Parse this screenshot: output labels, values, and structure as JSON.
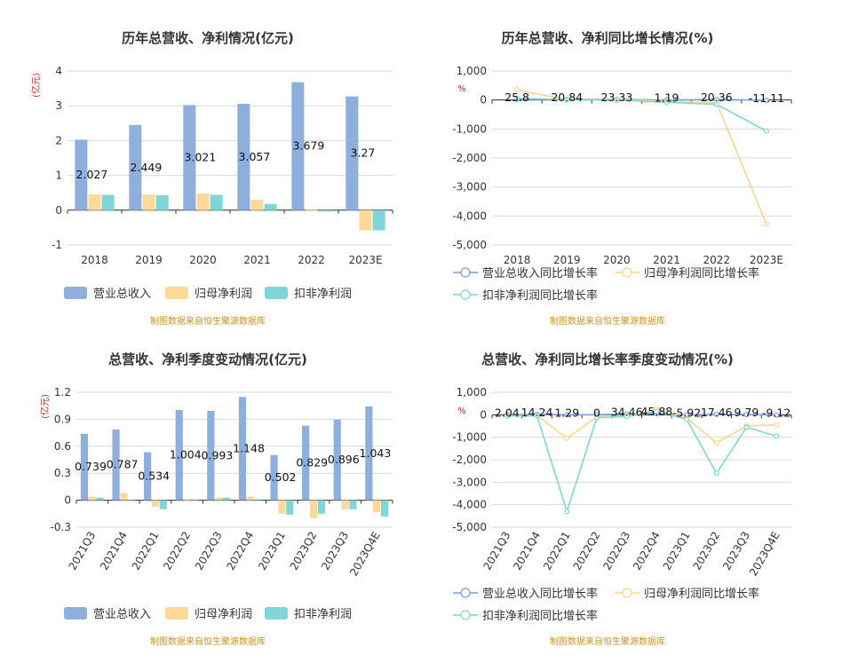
{
  "source_note": "制图数据来自恒生聚源数据库",
  "chart_data": [
    {
      "type": "bar",
      "title": "历年总营收、净利情况(亿元)",
      "ylabel": "(亿元)",
      "ylim": [
        -1,
        4
      ],
      "yticks": [
        "-1",
        "0",
        "1",
        "2",
        "3",
        "4"
      ],
      "categories": [
        "2018",
        "2019",
        "2020",
        "2021",
        "2022",
        "2023E"
      ],
      "series": [
        {
          "name": "营业总收入",
          "color": "#8eaedc",
          "values": [
            2.027,
            2.449,
            3.021,
            3.057,
            3.679,
            3.27
          ]
        },
        {
          "name": "归母净利润",
          "color": "#fdd999",
          "values": [
            0.45,
            0.45,
            0.48,
            0.3,
            0.01,
            -0.58
          ]
        },
        {
          "name": "扣非净利润",
          "color": "#7fd6d6",
          "values": [
            0.44,
            0.43,
            0.44,
            0.18,
            -0.04,
            -0.58
          ]
        }
      ],
      "data_labels": [
        "2.027",
        "2.449",
        "3.021",
        "3.057",
        "3.679",
        "3.27"
      ],
      "legend": "bottom"
    },
    {
      "type": "line",
      "title": "历年总营收、净利同比增长情况(%)",
      "ylabel": "%",
      "ylim": [
        -5000,
        1000
      ],
      "yticks": [
        "-5,000",
        "-4,000",
        "-3,000",
        "-2,000",
        "-1,000",
        "0",
        "1,000"
      ],
      "categories": [
        "2018",
        "2019",
        "2020",
        "2021",
        "2022",
        "2023E"
      ],
      "series": [
        {
          "name": "营业总收入同比增长率",
          "color": "#7d9fd6",
          "values": [
            25.8,
            20.84,
            23.33,
            1.19,
            20.36,
            -11.11
          ]
        },
        {
          "name": "归母净利润同比增长率",
          "color": "#fdd58e",
          "values": [
            350,
            5,
            10,
            -40,
            -100,
            -4280
          ]
        },
        {
          "name": "扣非净利润同比增长率",
          "color": "#7fd6d6",
          "values": [
            60,
            5,
            -5,
            -80,
            -150,
            -1070
          ]
        }
      ],
      "data_labels": [
        "25.8",
        "20.84",
        "23.33",
        "1.19",
        "20.36",
        "-11.11"
      ],
      "legend": "bottom"
    },
    {
      "type": "bar",
      "title": "总营收、净利季度变动情况(亿元)",
      "ylabel": "(亿元)",
      "ylim": [
        -0.3,
        1.2
      ],
      "yticks": [
        "-0.3",
        "0",
        "0.3",
        "0.6",
        "0.9",
        "1.2"
      ],
      "categories": [
        "2021Q3",
        "2021Q4",
        "2022Q1",
        "2022Q2",
        "2022Q3",
        "2022Q4",
        "2023Q1",
        "2023Q2",
        "2023Q3",
        "2023Q4E"
      ],
      "series": [
        {
          "name": "营业总收入",
          "color": "#8eaedc",
          "values": [
            0.739,
            0.787,
            0.534,
            1.004,
            0.993,
            1.148,
            0.502,
            0.829,
            0.896,
            1.043
          ]
        },
        {
          "name": "归母净利润",
          "color": "#fdd999",
          "values": [
            0.04,
            0.08,
            -0.07,
            0.01,
            0.03,
            0.04,
            -0.15,
            -0.2,
            -0.1,
            -0.13
          ]
        },
        {
          "name": "扣非净利润",
          "color": "#7fd6d6",
          "values": [
            0.03,
            0.0,
            -0.1,
            0.01,
            0.03,
            0.01,
            -0.16,
            -0.15,
            -0.1,
            -0.18
          ]
        }
      ],
      "data_labels": [
        "0.739",
        "0.787",
        "0.534",
        "1.004",
        "0.993",
        "1.148",
        "0.502",
        "0.829",
        "0.896",
        "1.043"
      ],
      "legend": "bottom"
    },
    {
      "type": "line",
      "title": "总营收、净利同比增长率季度变动情况(%)",
      "ylabel": "%",
      "ylim": [
        -5000,
        1000
      ],
      "yticks": [
        "-5,000",
        "-4,000",
        "-3,000",
        "-2,000",
        "-1,000",
        "0",
        "1,000"
      ],
      "categories": [
        "2021Q3",
        "2021Q4",
        "2022Q1",
        "2022Q2",
        "2022Q3",
        "2022Q4",
        "2023Q1",
        "2023Q2",
        "2023Q3",
        "2023Q4E"
      ],
      "series": [
        {
          "name": "营业总收入同比增长率",
          "color": "#7d9fd6",
          "values": [
            2.04,
            14.24,
            1.29,
            0,
            34.46,
            45.88,
            -5.92,
            17.46,
            9.79,
            -9.12
          ]
        },
        {
          "name": "归母净利润同比增长率",
          "color": "#fdd58e",
          "values": [
            -50,
            -30,
            -1050,
            -80,
            -60,
            250,
            -150,
            -1250,
            -500,
            -450
          ]
        },
        {
          "name": "扣非净利润同比增长率",
          "color": "#7fd6d6",
          "values": [
            -60,
            -40,
            -4300,
            -120,
            -80,
            150,
            -200,
            -2600,
            -550,
            -950
          ]
        }
      ],
      "data_labels": [
        "2.04",
        "14.24",
        "1.29",
        "0",
        "34.46",
        "45.88",
        "-5.92",
        "17.46",
        "9.79",
        "-9.12"
      ],
      "legend": "bottom"
    }
  ]
}
